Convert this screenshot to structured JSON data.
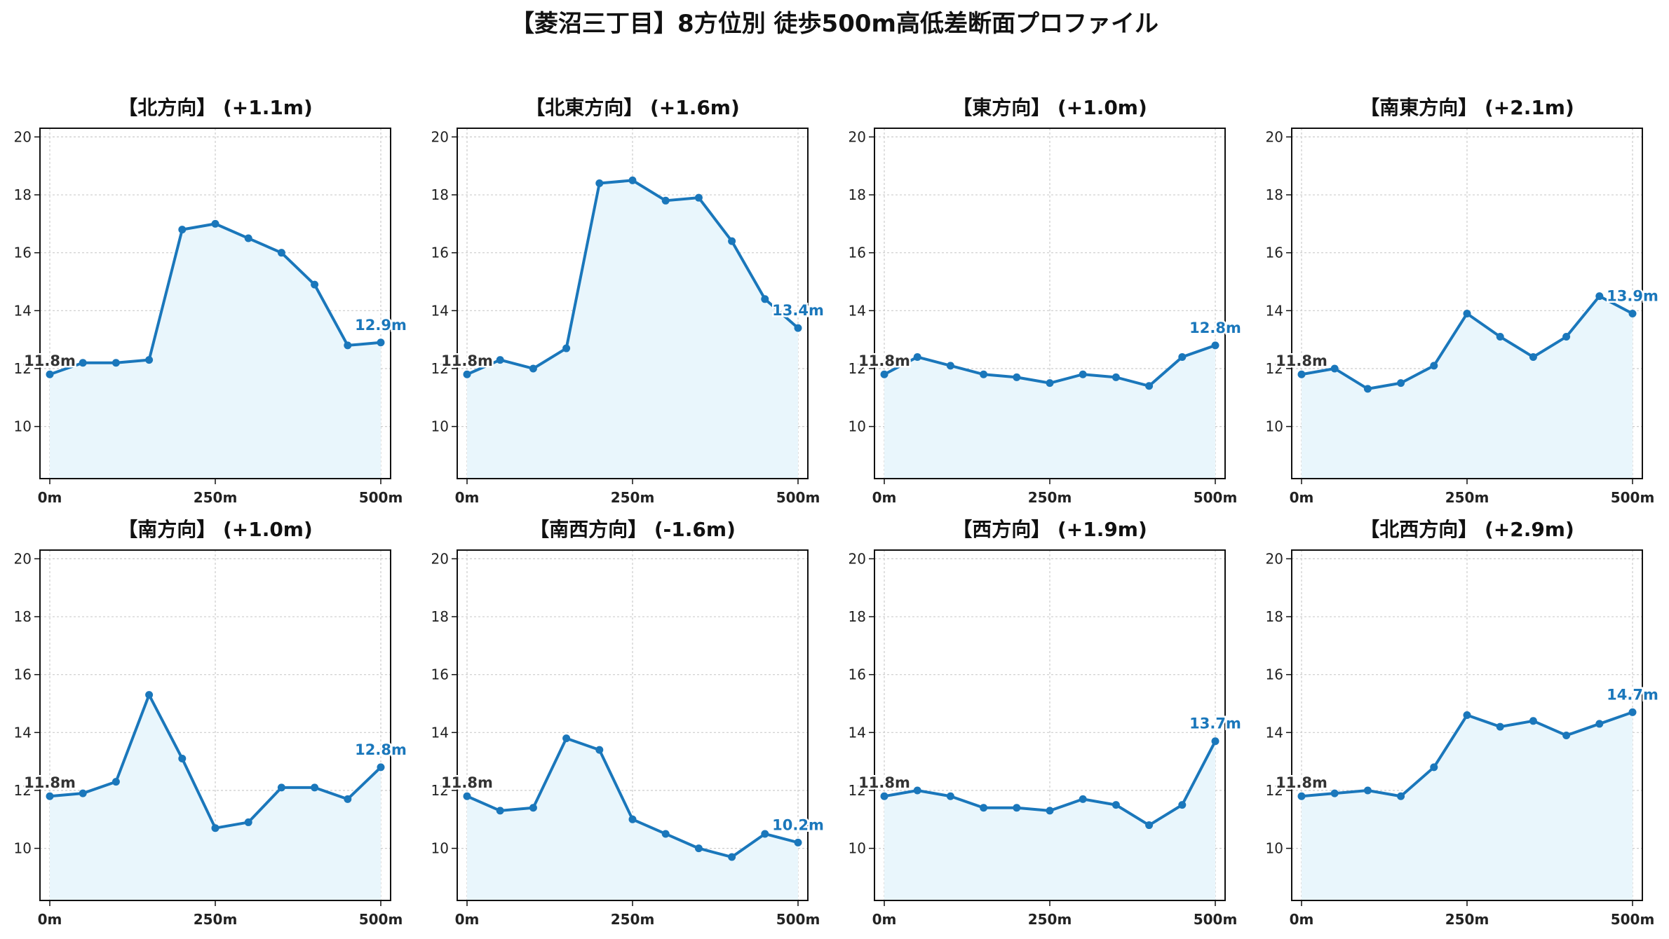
{
  "title": "【菱沼三丁目】8方位別 徒歩500m高低差断面プロファイル",
  "colors": {
    "line": "#1a77bb",
    "fill": "#e9f6fc",
    "grid": "#cccccc",
    "end_label": "#1a77bb",
    "start_label": "#333333"
  },
  "chart_data": [
    {
      "type": "line",
      "title": "【北方向】 (+1.1m)",
      "x": [
        0,
        50,
        100,
        150,
        200,
        250,
        300,
        350,
        400,
        450,
        500
      ],
      "y": [
        11.8,
        12.2,
        12.2,
        12.3,
        16.8,
        17.0,
        16.5,
        16.0,
        14.9,
        12.8,
        12.9
      ],
      "start_label": "11.8m",
      "end_label": "12.9m",
      "xticks": [
        "0m",
        "250m",
        "500m"
      ],
      "yticks": [
        10,
        12,
        14,
        16,
        18,
        20
      ],
      "ylim": [
        8.2,
        20.3
      ],
      "grid": true
    },
    {
      "type": "line",
      "title": "【北東方向】 (+1.6m)",
      "x": [
        0,
        50,
        100,
        150,
        200,
        250,
        300,
        350,
        400,
        450,
        500
      ],
      "y": [
        11.8,
        12.3,
        12.0,
        12.7,
        18.4,
        18.5,
        17.8,
        17.9,
        16.4,
        14.4,
        13.4
      ],
      "start_label": "11.8m",
      "end_label": "13.4m",
      "xticks": [
        "0m",
        "250m",
        "500m"
      ],
      "yticks": [
        10,
        12,
        14,
        16,
        18,
        20
      ],
      "ylim": [
        8.2,
        20.3
      ],
      "grid": true
    },
    {
      "type": "line",
      "title": "【東方向】 (+1.0m)",
      "x": [
        0,
        50,
        100,
        150,
        200,
        250,
        300,
        350,
        400,
        450,
        500
      ],
      "y": [
        11.8,
        12.4,
        12.1,
        11.8,
        11.7,
        11.5,
        11.8,
        11.7,
        11.4,
        12.4,
        12.8
      ],
      "start_label": "11.8m",
      "end_label": "12.8m",
      "xticks": [
        "0m",
        "250m",
        "500m"
      ],
      "yticks": [
        10,
        12,
        14,
        16,
        18,
        20
      ],
      "ylim": [
        8.2,
        20.3
      ],
      "grid": true
    },
    {
      "type": "line",
      "title": "【南東方向】 (+2.1m)",
      "x": [
        0,
        50,
        100,
        150,
        200,
        250,
        300,
        350,
        400,
        450,
        500
      ],
      "y": [
        11.8,
        12.0,
        11.3,
        11.5,
        12.1,
        13.9,
        13.1,
        12.4,
        13.1,
        14.5,
        13.9
      ],
      "start_label": "11.8m",
      "end_label": "13.9m",
      "xticks": [
        "0m",
        "250m",
        "500m"
      ],
      "yticks": [
        10,
        12,
        14,
        16,
        18,
        20
      ],
      "ylim": [
        8.2,
        20.3
      ],
      "grid": true
    },
    {
      "type": "line",
      "title": "【南方向】 (+1.0m)",
      "x": [
        0,
        50,
        100,
        150,
        200,
        250,
        300,
        350,
        400,
        450,
        500
      ],
      "y": [
        11.8,
        11.9,
        12.3,
        15.3,
        13.1,
        10.7,
        10.9,
        12.1,
        12.1,
        11.7,
        12.8
      ],
      "start_label": "11.8m",
      "end_label": "12.8m",
      "xticks": [
        "0m",
        "250m",
        "500m"
      ],
      "yticks": [
        10,
        12,
        14,
        16,
        18,
        20
      ],
      "ylim": [
        8.2,
        20.3
      ],
      "grid": true
    },
    {
      "type": "line",
      "title": "【南西方向】 (-1.6m)",
      "x": [
        0,
        50,
        100,
        150,
        200,
        250,
        300,
        350,
        400,
        450,
        500
      ],
      "y": [
        11.8,
        11.3,
        11.4,
        13.8,
        13.4,
        11.0,
        10.5,
        10.0,
        9.7,
        10.5,
        10.2
      ],
      "start_label": "11.8m",
      "end_label": "10.2m",
      "xticks": [
        "0m",
        "250m",
        "500m"
      ],
      "yticks": [
        10,
        12,
        14,
        16,
        18,
        20
      ],
      "ylim": [
        8.2,
        20.3
      ],
      "grid": true
    },
    {
      "type": "line",
      "title": "【西方向】 (+1.9m)",
      "x": [
        0,
        50,
        100,
        150,
        200,
        250,
        300,
        350,
        400,
        450,
        500
      ],
      "y": [
        11.8,
        12.0,
        11.8,
        11.4,
        11.4,
        11.3,
        11.7,
        11.5,
        10.8,
        11.5,
        13.7
      ],
      "start_label": "11.8m",
      "end_label": "13.7m",
      "xticks": [
        "0m",
        "250m",
        "500m"
      ],
      "yticks": [
        10,
        12,
        14,
        16,
        18,
        20
      ],
      "ylim": [
        8.2,
        20.3
      ],
      "grid": true
    },
    {
      "type": "line",
      "title": "【北西方向】 (+2.9m)",
      "x": [
        0,
        50,
        100,
        150,
        200,
        250,
        300,
        350,
        400,
        450,
        500
      ],
      "y": [
        11.8,
        11.9,
        12.0,
        11.8,
        12.8,
        14.6,
        14.2,
        14.4,
        13.9,
        14.3,
        14.7
      ],
      "start_label": "11.8m",
      "end_label": "14.7m",
      "xticks": [
        "0m",
        "250m",
        "500m"
      ],
      "yticks": [
        10,
        12,
        14,
        16,
        18,
        20
      ],
      "ylim": [
        8.2,
        20.3
      ],
      "grid": true
    }
  ]
}
